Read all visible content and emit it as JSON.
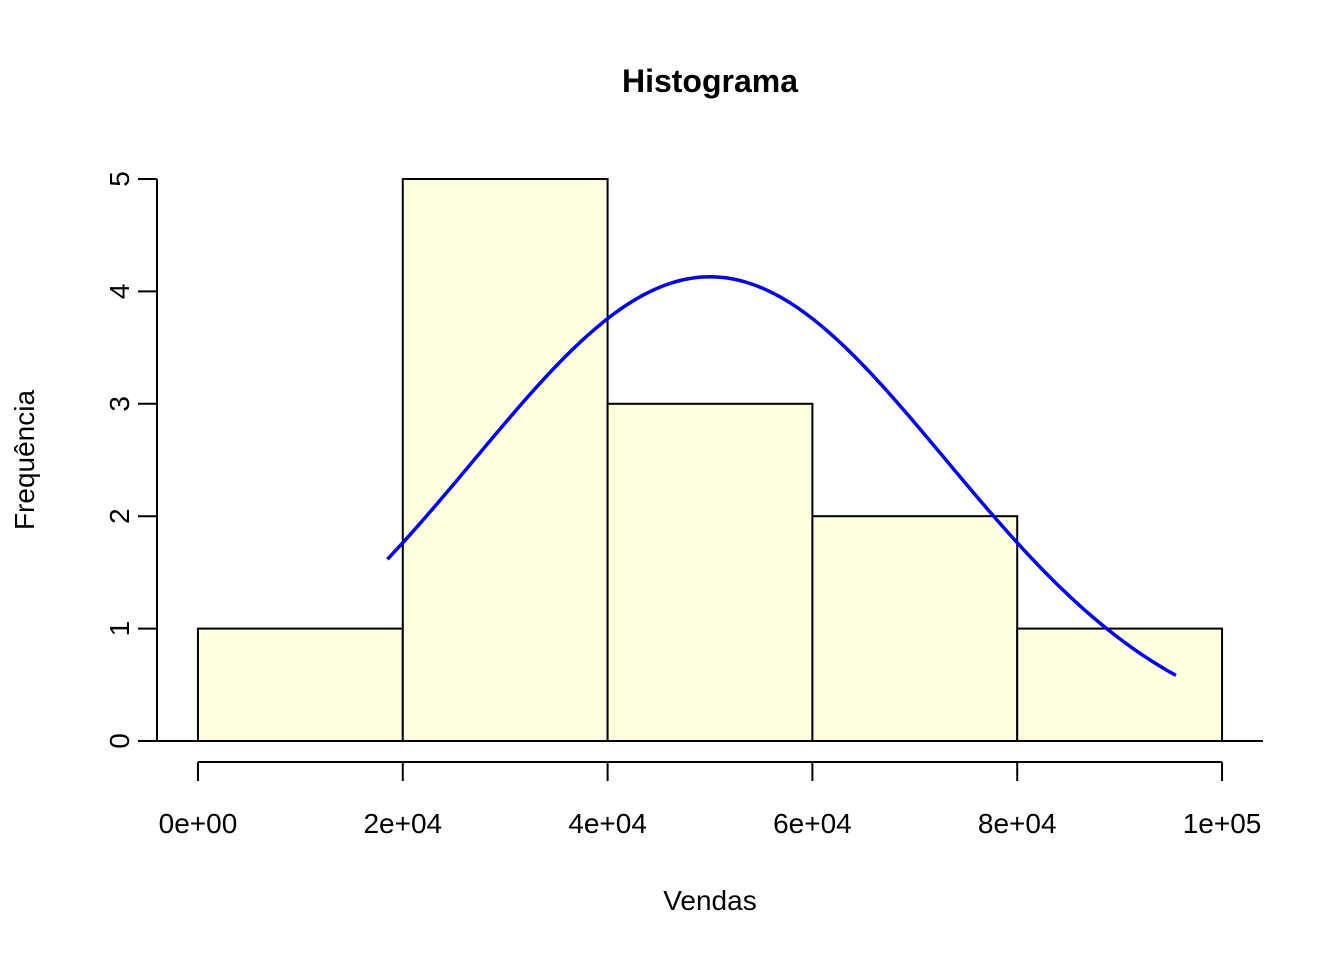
{
  "chart_data": {
    "type": "bar",
    "title": "Histograma",
    "xlabel": "Vendas",
    "ylabel": "Frequência",
    "bins": [
      {
        "start": 0,
        "end": 20000,
        "count": 1
      },
      {
        "start": 20000,
        "end": 40000,
        "count": 5
      },
      {
        "start": 40000,
        "end": 60000,
        "count": 3
      },
      {
        "start": 60000,
        "end": 80000,
        "count": 2
      },
      {
        "start": 80000,
        "end": 100000,
        "count": 1
      }
    ],
    "x_ticks": [
      {
        "value": 0,
        "label": "0e+00"
      },
      {
        "value": 20000,
        "label": "2e+04"
      },
      {
        "value": 40000,
        "label": "4e+04"
      },
      {
        "value": 60000,
        "label": "6e+04"
      },
      {
        "value": 80000,
        "label": "8e+04"
      },
      {
        "value": 100000,
        "label": "1e+05"
      }
    ],
    "y_ticks": [
      {
        "value": 0,
        "label": "0"
      },
      {
        "value": 1,
        "label": "1"
      },
      {
        "value": 2,
        "label": "2"
      },
      {
        "value": 3,
        "label": "3"
      },
      {
        "value": 4,
        "label": "4"
      },
      {
        "value": 5,
        "label": "5"
      }
    ],
    "xlim": [
      -4000,
      104000
    ],
    "ylim": [
      0,
      5
    ],
    "density_curve": {
      "color": "#0000FF",
      "mean": 50000,
      "sd": 23000,
      "scale": 4.13,
      "x_range": [
        18500,
        95500
      ]
    },
    "bar_color": "#FFFFE0",
    "grid": false,
    "legend": "none"
  }
}
